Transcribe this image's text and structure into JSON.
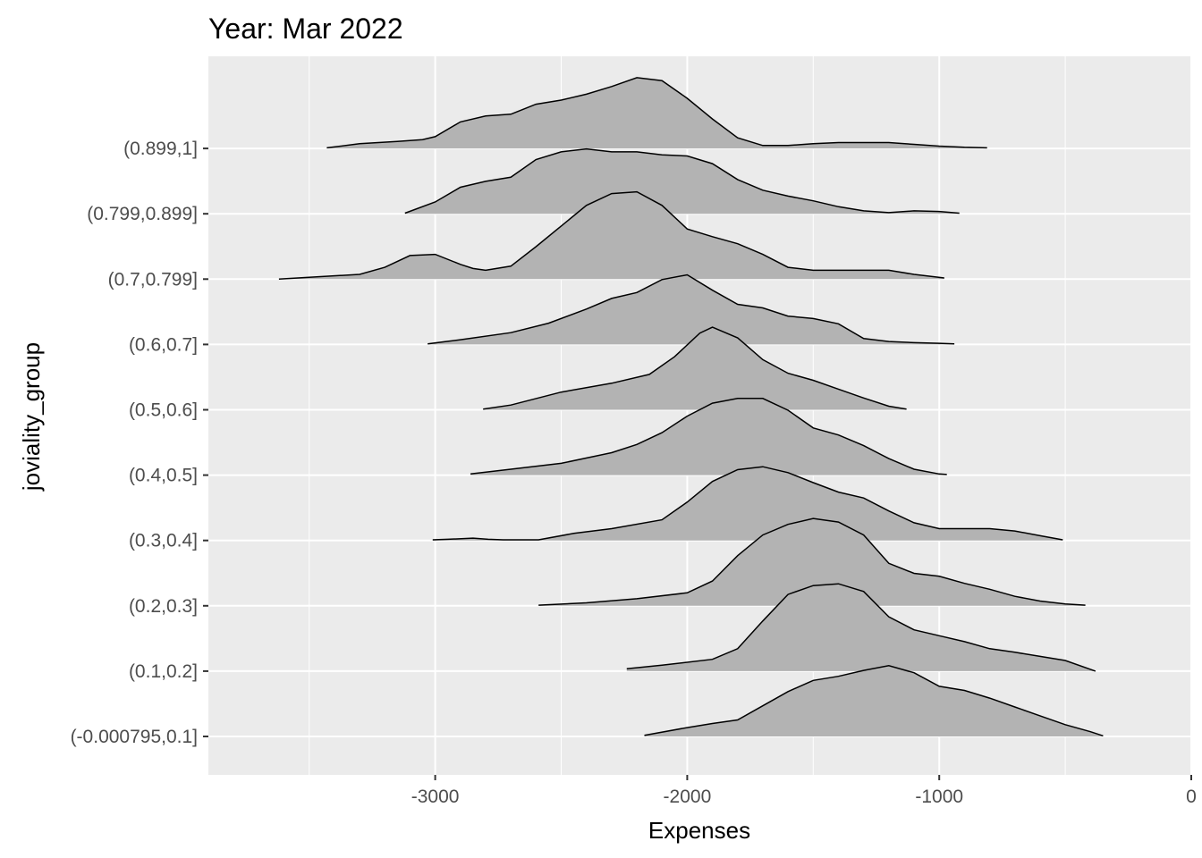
{
  "chart_data": {
    "type": "ridgeline",
    "title": "Year: Mar 2022",
    "xlabel": "Expenses",
    "ylabel": "joviality_group",
    "xlim": [
      -3900,
      0
    ],
    "x_ticks": [
      -3000,
      -2000,
      -1000,
      0
    ],
    "x_tick_labels": [
      "-3000",
      "-2000",
      "-1000",
      "0"
    ],
    "grid": true,
    "colors": {
      "panel": "#EBEBEB",
      "grid": "#FFFFFF",
      "fill": "#B3B3B3",
      "outline": "#000000",
      "tick_text": "#4D4D4D"
    },
    "groups": [
      {
        "name": "(-0.000795,0.1]",
        "x": [
          -2170,
          -2000,
          -1900,
          -1800,
          -1700,
          -1600,
          -1500,
          -1400,
          -1300,
          -1200,
          -1100,
          -1000,
          -900,
          -800,
          -700,
          -600,
          -500,
          -400,
          -350
        ],
        "density": [
          0.02,
          0.15,
          0.22,
          0.28,
          0.52,
          0.76,
          0.95,
          1.02,
          1.12,
          1.2,
          1.08,
          0.85,
          0.78,
          0.65,
          0.5,
          0.35,
          0.2,
          0.08,
          0.01
        ]
      },
      {
        "name": "(0.1,0.2]",
        "x": [
          -2240,
          -2100,
          -1900,
          -1800,
          -1700,
          -1600,
          -1500,
          -1400,
          -1300,
          -1200,
          -1100,
          -1000,
          -900,
          -800,
          -700,
          -600,
          -500,
          -380
        ],
        "density": [
          0.04,
          0.1,
          0.2,
          0.38,
          0.85,
          1.3,
          1.45,
          1.48,
          1.35,
          0.92,
          0.7,
          0.6,
          0.5,
          0.38,
          0.32,
          0.25,
          0.18,
          0.0
        ]
      },
      {
        "name": "(0.2,0.3]",
        "x": [
          -2590,
          -2400,
          -2200,
          -2000,
          -1900,
          -1800,
          -1700,
          -1600,
          -1500,
          -1400,
          -1300,
          -1200,
          -1100,
          -1000,
          -900,
          -800,
          -700,
          -600,
          -500,
          -420
        ],
        "density": [
          0.01,
          0.05,
          0.12,
          0.22,
          0.42,
          0.85,
          1.2,
          1.38,
          1.48,
          1.42,
          1.2,
          0.72,
          0.55,
          0.5,
          0.38,
          0.28,
          0.16,
          0.08,
          0.03,
          0.01
        ]
      },
      {
        "name": "(0.3,0.4]",
        "x": [
          -3010,
          -2950,
          -2850,
          -2790,
          -2730,
          -2590,
          -2450,
          -2300,
          -2100,
          -2000,
          -1900,
          -1800,
          -1700,
          -1600,
          -1500,
          -1400,
          -1300,
          -1200,
          -1100,
          -1000,
          -900,
          -800,
          -700,
          -600,
          -510
        ],
        "density": [
          0.01,
          0.02,
          0.04,
          0.02,
          0.01,
          0.01,
          0.12,
          0.2,
          0.35,
          0.65,
          1.0,
          1.2,
          1.25,
          1.15,
          0.98,
          0.82,
          0.72,
          0.5,
          0.3,
          0.2,
          0.2,
          0.2,
          0.16,
          0.08,
          0.01
        ]
      },
      {
        "name": "(0.4,0.5]",
        "x": [
          -2860,
          -2700,
          -2500,
          -2300,
          -2200,
          -2100,
          -2000,
          -1900,
          -1800,
          -1700,
          -1600,
          -1500,
          -1400,
          -1300,
          -1200,
          -1100,
          -1000,
          -970
        ],
        "density": [
          0.02,
          0.1,
          0.2,
          0.38,
          0.52,
          0.72,
          1.0,
          1.22,
          1.3,
          1.3,
          1.1,
          0.8,
          0.68,
          0.5,
          0.28,
          0.1,
          0.02,
          0.01
        ]
      },
      {
        "name": "(0.5,0.6]",
        "x": [
          -2810,
          -2700,
          -2500,
          -2300,
          -2150,
          -2050,
          -1950,
          -1900,
          -1800,
          -1700,
          -1600,
          -1500,
          -1400,
          -1300,
          -1200,
          -1130
        ],
        "density": [
          0.01,
          0.08,
          0.3,
          0.45,
          0.6,
          0.9,
          1.3,
          1.4,
          1.22,
          0.85,
          0.62,
          0.5,
          0.35,
          0.2,
          0.06,
          0.01
        ]
      },
      {
        "name": "(0.6,0.7]",
        "x": [
          -3030,
          -2900,
          -2700,
          -2550,
          -2400,
          -2300,
          -2200,
          -2100,
          -2000,
          -1900,
          -1800,
          -1700,
          -1600,
          -1500,
          -1400,
          -1300,
          -1200,
          -1100,
          -1000,
          -940
        ],
        "density": [
          0.01,
          0.08,
          0.2,
          0.36,
          0.6,
          0.78,
          0.88,
          1.1,
          1.18,
          0.92,
          0.68,
          0.62,
          0.48,
          0.44,
          0.35,
          0.1,
          0.05,
          0.03,
          0.02,
          0.01
        ]
      },
      {
        "name": "(0.7,0.799]",
        "x": [
          -3620,
          -3500,
          -3300,
          -3200,
          -3100,
          -3000,
          -2900,
          -2850,
          -2800,
          -2700,
          -2600,
          -2500,
          -2400,
          -2300,
          -2200,
          -2100,
          -2000,
          -1900,
          -1800,
          -1700,
          -1600,
          -1500,
          -1400,
          -1300,
          -1200,
          -1100,
          -980
        ],
        "density": [
          0.0,
          0.03,
          0.08,
          0.2,
          0.4,
          0.42,
          0.25,
          0.18,
          0.15,
          0.22,
          0.55,
          0.9,
          1.25,
          1.45,
          1.48,
          1.25,
          0.85,
          0.72,
          0.6,
          0.42,
          0.2,
          0.15,
          0.15,
          0.15,
          0.15,
          0.08,
          0.02
        ]
      },
      {
        "name": "(0.799,0.899]",
        "x": [
          -3120,
          -3000,
          -2900,
          -2800,
          -2700,
          -2600,
          -2500,
          -2400,
          -2300,
          -2200,
          -2100,
          -2000,
          -1900,
          -1800,
          -1700,
          -1600,
          -1500,
          -1400,
          -1300,
          -1200,
          -1100,
          -1000,
          -920
        ],
        "density": [
          0.01,
          0.2,
          0.45,
          0.55,
          0.62,
          0.92,
          1.05,
          1.1,
          1.05,
          1.05,
          1.0,
          0.98,
          0.85,
          0.58,
          0.4,
          0.3,
          0.22,
          0.12,
          0.05,
          0.02,
          0.05,
          0.04,
          0.01
        ]
      },
      {
        "name": "(0.899,1]",
        "x": [
          -3430,
          -3300,
          -3150,
          -3050,
          -3000,
          -2900,
          -2800,
          -2700,
          -2600,
          -2500,
          -2400,
          -2300,
          -2200,
          -2100,
          -2000,
          -1900,
          -1800,
          -1700,
          -1600,
          -1500,
          -1400,
          -1300,
          -1200,
          -1100,
          -1000,
          -900,
          -810
        ],
        "density": [
          0.01,
          0.08,
          0.12,
          0.15,
          0.2,
          0.45,
          0.55,
          0.58,
          0.75,
          0.82,
          0.92,
          1.05,
          1.2,
          1.15,
          0.85,
          0.5,
          0.18,
          0.05,
          0.05,
          0.08,
          0.1,
          0.1,
          0.1,
          0.07,
          0.04,
          0.02,
          0.01
        ]
      }
    ]
  }
}
